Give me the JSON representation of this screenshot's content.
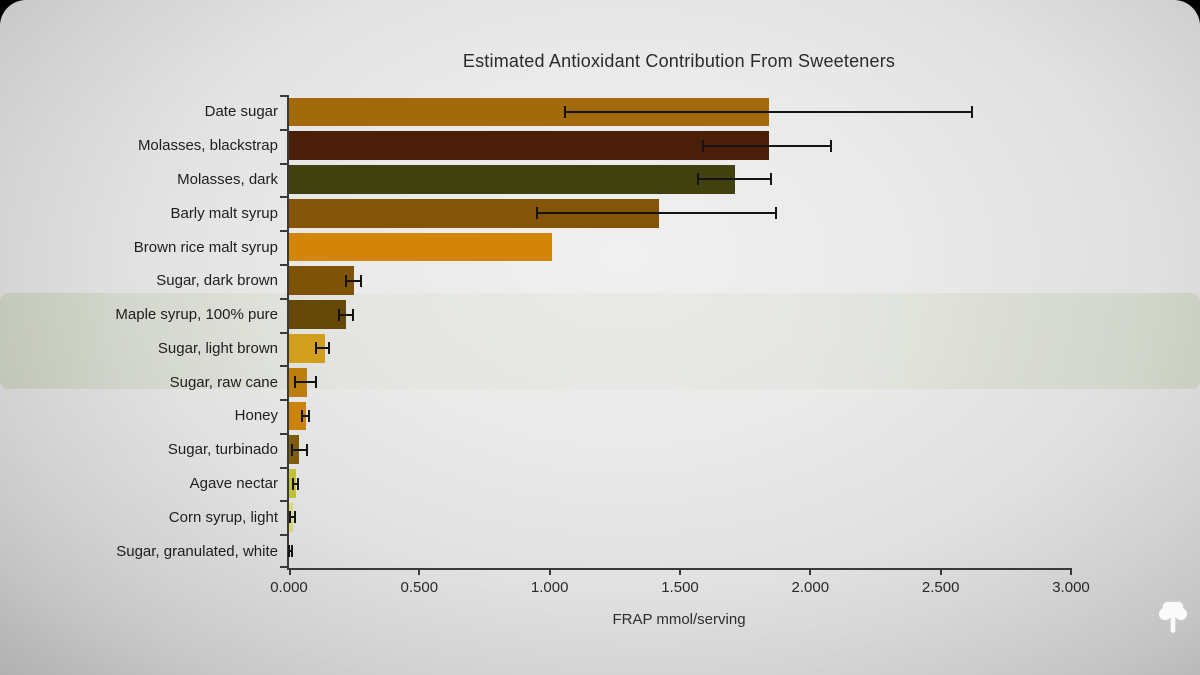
{
  "chart_data": {
    "type": "bar",
    "orientation": "horizontal",
    "title": "Estimated Antioxidant Contribution From Sweeteners",
    "xlabel": "FRAP mmol/serving",
    "xlim": [
      0,
      3.0
    ],
    "grid": false,
    "x_ticks": [
      0,
      0.5,
      1.0,
      1.5,
      2.0,
      2.5,
      3.0
    ],
    "x_tick_labels": [
      "0.000",
      "0.500",
      "1.000",
      "1.500",
      "2.000",
      "2.500",
      "3.000"
    ],
    "rows": [
      {
        "label": "Date sugar",
        "value": 1.84,
        "err_low": 1.06,
        "err_high": 2.62,
        "color": "#a26a0b"
      },
      {
        "label": "Molasses, blackstrap",
        "value": 1.84,
        "err_low": 1.59,
        "err_high": 2.08,
        "color": "#4a1f0a"
      },
      {
        "label": "Molasses, dark",
        "value": 1.71,
        "err_low": 1.57,
        "err_high": 1.85,
        "color": "#41400f"
      },
      {
        "label": "Barly malt syrup",
        "value": 1.42,
        "err_low": 0.95,
        "err_high": 1.87,
        "color": "#845508"
      },
      {
        "label": "Brown rice malt syrup",
        "value": 1.01,
        "err_low": null,
        "err_high": null,
        "color": "#d28508"
      },
      {
        "label": "Sugar, dark brown",
        "value": 0.25,
        "err_low": 0.22,
        "err_high": 0.275,
        "color": "#7f5307"
      },
      {
        "label": "Maple syrup, 100% pure",
        "value": 0.22,
        "err_low": 0.19,
        "err_high": 0.245,
        "color": "#654708"
      },
      {
        "label": "Sugar, light brown",
        "value": 0.14,
        "err_low": 0.105,
        "err_high": 0.155,
        "color": "#d19e1e"
      },
      {
        "label": "Sugar, raw cane",
        "value": 0.07,
        "err_low": 0.022,
        "err_high": 0.105,
        "color": "#bb7e0a"
      },
      {
        "label": "Honey",
        "value": 0.065,
        "err_low": 0.05,
        "err_high": 0.075,
        "color": "#ca820b"
      },
      {
        "label": "Sugar, turbinado",
        "value": 0.04,
        "err_low": 0.01,
        "err_high": 0.07,
        "color": "#7e5d09"
      },
      {
        "label": "Agave nectar",
        "value": 0.026,
        "err_low": 0.015,
        "err_high": 0.035,
        "color": "#c1c034"
      },
      {
        "label": "Corn syrup, light",
        "value": 0.016,
        "err_low": 0.005,
        "err_high": 0.022,
        "color": "#dcd977"
      },
      {
        "label": "Sugar, granulated, white",
        "value": 0.004,
        "err_low": 0.0,
        "err_high": 0.01,
        "color": "#e9e5d8"
      }
    ]
  },
  "watermark": {
    "icon": "tree-icon",
    "color": "#fdfdfd"
  }
}
